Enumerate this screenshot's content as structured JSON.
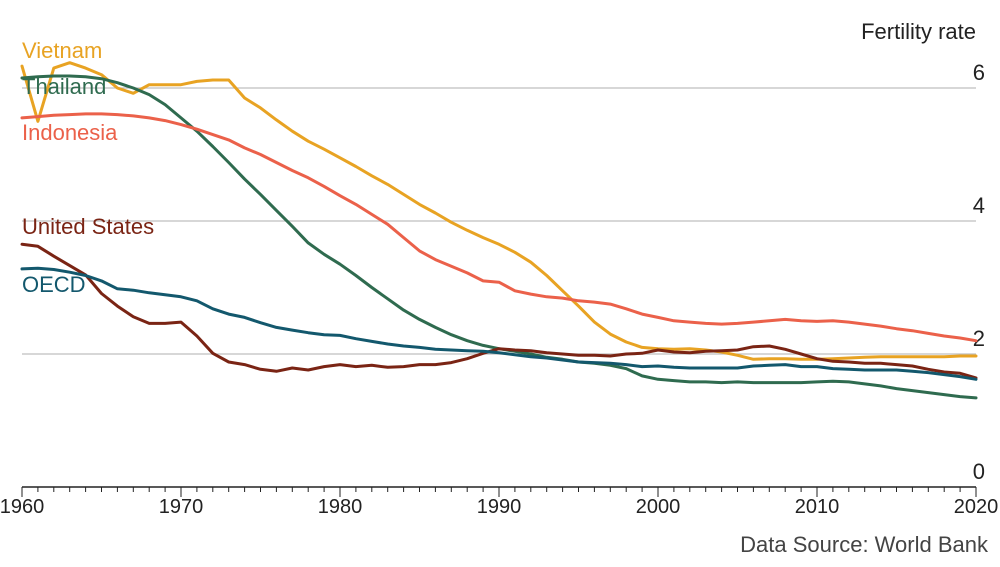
{
  "chart_data": {
    "type": "line",
    "unit_label": "Fertility rate",
    "source": "Data Source: World Bank",
    "xlim": [
      1960,
      2020
    ],
    "ylim": [
      0,
      6.6
    ],
    "x_ticks": [
      1960,
      1970,
      1980,
      1990,
      2000,
      2010,
      2020
    ],
    "y_ticks": [
      0,
      2,
      4,
      6
    ],
    "grid": "horizontal",
    "series": [
      {
        "name": "Vietnam",
        "color": "#e8a323",
        "x": [
          1960,
          1961,
          1962,
          1963,
          1964,
          1965,
          1966,
          1967,
          1968,
          1969,
          1970,
          1971,
          1972,
          1973,
          1974,
          1975,
          1976,
          1977,
          1978,
          1979,
          1980,
          1981,
          1982,
          1983,
          1984,
          1985,
          1986,
          1987,
          1988,
          1989,
          1990,
          1991,
          1992,
          1993,
          1994,
          1995,
          1996,
          1997,
          1998,
          1999,
          2000,
          2001,
          2002,
          2003,
          2004,
          2005,
          2006,
          2007,
          2008,
          2009,
          2010,
          2011,
          2012,
          2013,
          2014,
          2015,
          2016,
          2017,
          2018,
          2019,
          2020
        ],
        "values": [
          6.33,
          5.5,
          6.3,
          6.38,
          6.3,
          6.2,
          6.0,
          5.92,
          6.05,
          6.05,
          6.05,
          6.1,
          6.12,
          6.12,
          5.85,
          5.7,
          5.52,
          5.35,
          5.2,
          5.08,
          4.95,
          4.82,
          4.68,
          4.55,
          4.4,
          4.25,
          4.12,
          3.98,
          3.86,
          3.75,
          3.65,
          3.53,
          3.38,
          3.18,
          2.95,
          2.72,
          2.48,
          2.3,
          2.18,
          2.1,
          2.08,
          2.07,
          2.08,
          2.06,
          2.03,
          1.98,
          1.92,
          1.93,
          1.93,
          1.92,
          1.92,
          1.93,
          1.94,
          1.95,
          1.96,
          1.96,
          1.96,
          1.96,
          1.96,
          1.97,
          1.97
        ]
      },
      {
        "name": "Thailand",
        "color": "#2f6b4f",
        "x": [
          1960,
          1961,
          1962,
          1963,
          1964,
          1965,
          1966,
          1967,
          1968,
          1969,
          1970,
          1971,
          1972,
          1973,
          1974,
          1975,
          1976,
          1977,
          1978,
          1979,
          1980,
          1981,
          1982,
          1983,
          1984,
          1985,
          1986,
          1987,
          1988,
          1989,
          1990,
          1991,
          1992,
          1993,
          1994,
          1995,
          1996,
          1997,
          1998,
          1999,
          2000,
          2001,
          2002,
          2003,
          2004,
          2005,
          2006,
          2007,
          2008,
          2009,
          2010,
          2011,
          2012,
          2013,
          2014,
          2015,
          2016,
          2017,
          2018,
          2019,
          2020
        ],
        "values": [
          6.15,
          6.17,
          6.18,
          6.18,
          6.17,
          6.14,
          6.08,
          6.0,
          5.9,
          5.75,
          5.55,
          5.35,
          5.12,
          4.88,
          4.63,
          4.4,
          4.16,
          3.92,
          3.67,
          3.5,
          3.35,
          3.18,
          3.0,
          2.83,
          2.66,
          2.52,
          2.4,
          2.29,
          2.2,
          2.13,
          2.08,
          2.04,
          2.0,
          1.95,
          1.92,
          1.88,
          1.86,
          1.83,
          1.78,
          1.67,
          1.62,
          1.6,
          1.58,
          1.58,
          1.57,
          1.58,
          1.57,
          1.57,
          1.57,
          1.57,
          1.58,
          1.59,
          1.58,
          1.55,
          1.52,
          1.48,
          1.45,
          1.42,
          1.39,
          1.36,
          1.34
        ]
      },
      {
        "name": "Indonesia",
        "color": "#eb614a",
        "x": [
          1960,
          1961,
          1962,
          1963,
          1964,
          1965,
          1966,
          1967,
          1968,
          1969,
          1970,
          1971,
          1972,
          1973,
          1974,
          1975,
          1976,
          1977,
          1978,
          1979,
          1980,
          1981,
          1982,
          1983,
          1984,
          1985,
          1986,
          1987,
          1988,
          1989,
          1990,
          1991,
          1992,
          1993,
          1994,
          1995,
          1996,
          1997,
          1998,
          1999,
          2000,
          2001,
          2002,
          2003,
          2004,
          2005,
          2006,
          2007,
          2008,
          2009,
          2010,
          2011,
          2012,
          2013,
          2014,
          2015,
          2016,
          2017,
          2018,
          2019,
          2020
        ],
        "values": [
          5.55,
          5.57,
          5.59,
          5.6,
          5.61,
          5.61,
          5.6,
          5.58,
          5.55,
          5.51,
          5.45,
          5.38,
          5.3,
          5.22,
          5.1,
          5.0,
          4.88,
          4.76,
          4.65,
          4.52,
          4.38,
          4.25,
          4.1,
          3.95,
          3.75,
          3.55,
          3.42,
          3.32,
          3.22,
          3.1,
          3.08,
          2.95,
          2.9,
          2.86,
          2.84,
          2.8,
          2.78,
          2.75,
          2.68,
          2.6,
          2.55,
          2.5,
          2.48,
          2.46,
          2.45,
          2.46,
          2.48,
          2.5,
          2.52,
          2.5,
          2.49,
          2.5,
          2.48,
          2.45,
          2.42,
          2.38,
          2.35,
          2.31,
          2.27,
          2.24,
          2.2
        ]
      },
      {
        "name": "United States",
        "color": "#7a2414",
        "x": [
          1960,
          1961,
          1962,
          1963,
          1964,
          1965,
          1966,
          1967,
          1968,
          1969,
          1970,
          1971,
          1972,
          1973,
          1974,
          1975,
          1976,
          1977,
          1978,
          1979,
          1980,
          1981,
          1982,
          1983,
          1984,
          1985,
          1986,
          1987,
          1988,
          1989,
          1990,
          1991,
          1992,
          1993,
          1994,
          1995,
          1996,
          1997,
          1998,
          1999,
          2000,
          2001,
          2002,
          2003,
          2004,
          2005,
          2006,
          2007,
          2008,
          2009,
          2010,
          2011,
          2012,
          2013,
          2014,
          2015,
          2016,
          2017,
          2018,
          2019,
          2020
        ],
        "values": [
          3.65,
          3.62,
          3.47,
          3.33,
          3.19,
          2.91,
          2.72,
          2.56,
          2.46,
          2.46,
          2.48,
          2.27,
          2.01,
          1.88,
          1.84,
          1.77,
          1.74,
          1.79,
          1.76,
          1.81,
          1.84,
          1.81,
          1.83,
          1.8,
          1.81,
          1.84,
          1.84,
          1.87,
          1.93,
          2.01,
          2.08,
          2.06,
          2.05,
          2.02,
          2.0,
          1.98,
          1.98,
          1.97,
          2.0,
          2.01,
          2.06,
          2.03,
          2.02,
          2.04,
          2.05,
          2.06,
          2.11,
          2.12,
          2.07,
          2.0,
          1.93,
          1.89,
          1.88,
          1.86,
          1.86,
          1.84,
          1.82,
          1.77,
          1.73,
          1.71,
          1.64
        ]
      },
      {
        "name": "OECD",
        "color": "#13586d",
        "x": [
          1960,
          1961,
          1962,
          1963,
          1964,
          1965,
          1966,
          1967,
          1968,
          1969,
          1970,
          1971,
          1972,
          1973,
          1974,
          1975,
          1976,
          1977,
          1978,
          1979,
          1980,
          1981,
          1982,
          1983,
          1984,
          1985,
          1986,
          1987,
          1988,
          1989,
          1990,
          1991,
          1992,
          1993,
          1994,
          1995,
          1996,
          1997,
          1998,
          1999,
          2000,
          2001,
          2002,
          2003,
          2004,
          2005,
          2006,
          2007,
          2008,
          2009,
          2010,
          2011,
          2012,
          2013,
          2014,
          2015,
          2016,
          2017,
          2018,
          2019,
          2020
        ],
        "values": [
          3.28,
          3.29,
          3.27,
          3.23,
          3.18,
          3.1,
          2.98,
          2.96,
          2.92,
          2.89,
          2.86,
          2.8,
          2.68,
          2.6,
          2.55,
          2.47,
          2.4,
          2.36,
          2.32,
          2.29,
          2.28,
          2.23,
          2.19,
          2.15,
          2.12,
          2.1,
          2.07,
          2.06,
          2.05,
          2.04,
          2.02,
          1.99,
          1.96,
          1.94,
          1.91,
          1.88,
          1.87,
          1.86,
          1.84,
          1.81,
          1.82,
          1.8,
          1.79,
          1.79,
          1.79,
          1.79,
          1.82,
          1.83,
          1.84,
          1.81,
          1.81,
          1.78,
          1.77,
          1.76,
          1.76,
          1.76,
          1.74,
          1.72,
          1.69,
          1.66,
          1.62
        ]
      }
    ]
  }
}
